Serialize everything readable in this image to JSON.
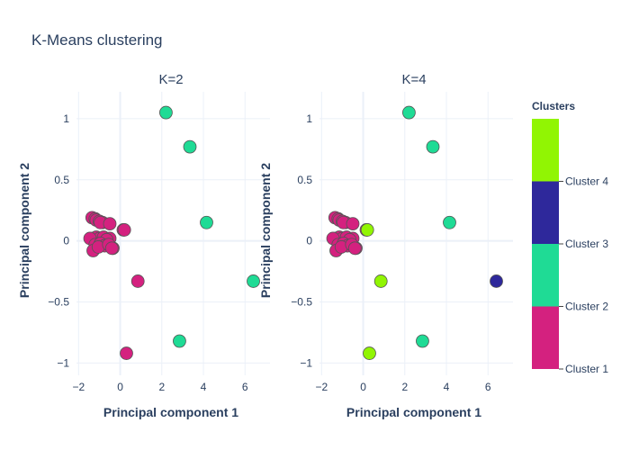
{
  "title": "K-Means clustering",
  "colorbar": {
    "title": "Clusters",
    "entries": [
      {
        "label": "Cluster 1",
        "color": "#d4217f"
      },
      {
        "label": "Cluster 2",
        "color": "#1fdb95"
      },
      {
        "label": "Cluster 3",
        "color": "#2e289b"
      },
      {
        "label": "Cluster 4",
        "color": "#91f503"
      }
    ],
    "ticks": [
      "Cluster 4",
      "Cluster 3",
      "Cluster 2",
      "Cluster 1"
    ]
  },
  "chart_data": [
    {
      "type": "scatter",
      "title": "K=2",
      "xlabel": "Principal component 1",
      "ylabel": "Principal component 2",
      "xlim": [
        -2.1,
        7.2
      ],
      "ylim": [
        -1.1,
        1.22
      ],
      "xticks": [
        "−2",
        "0",
        "2",
        "4",
        "6"
      ],
      "yticks": [
        "1",
        "0.5",
        "0",
        "−0.5",
        "−1"
      ],
      "x": [
        -1.35,
        -1.2,
        -1.15,
        -1.0,
        -0.85,
        -0.95,
        -0.5,
        0.15,
        -1.3,
        -1.15,
        -1.0,
        -0.8,
        -0.5,
        -1.45,
        -0.65,
        -1.2,
        -0.95,
        -0.75,
        -0.35,
        -1.3,
        -1.05,
        -0.55,
        -0.4,
        0.2,
        2.2,
        3.35,
        4.15,
        6.4,
        2.85,
        0.85,
        0.3
      ],
      "y": [
        0.19,
        0.18,
        0.17,
        0.16,
        0.15,
        0.15,
        0.14,
        0.09,
        0.02,
        0.03,
        0.02,
        0.03,
        0.02,
        0.02,
        0.01,
        -0.03,
        -0.02,
        -0.04,
        -0.06,
        -0.08,
        -0.05,
        -0.03,
        -0.06,
        0.09,
        1.05,
        0.77,
        0.15,
        -0.33,
        -0.82,
        -0.33,
        -0.92
      ],
      "cluster": [
        1,
        1,
        1,
        1,
        1,
        1,
        1,
        1,
        1,
        1,
        1,
        1,
        1,
        1,
        1,
        1,
        1,
        1,
        1,
        1,
        1,
        1,
        1,
        1,
        2,
        2,
        2,
        2,
        2,
        1,
        1
      ]
    },
    {
      "type": "scatter",
      "title": "K=4",
      "xlabel": "Principal component 1",
      "ylabel": "Principal component 2",
      "xlim": [
        -2.1,
        7.2
      ],
      "ylim": [
        -1.1,
        1.22
      ],
      "xticks": [
        "−2",
        "0",
        "2",
        "4",
        "6"
      ],
      "yticks": [
        "1",
        "0.5",
        "0",
        "−0.5",
        "−1"
      ],
      "x": [
        -1.35,
        -1.2,
        -1.15,
        -1.0,
        -0.85,
        -0.95,
        -0.5,
        0.15,
        -1.3,
        -1.15,
        -1.0,
        -0.8,
        -0.5,
        -1.45,
        -0.65,
        -1.2,
        -0.95,
        -0.75,
        -0.35,
        -1.3,
        -1.05,
        -0.55,
        -0.4,
        0.2,
        2.2,
        3.35,
        4.15,
        6.4,
        2.85,
        0.85,
        0.3
      ],
      "y": [
        0.19,
        0.18,
        0.17,
        0.16,
        0.15,
        0.15,
        0.14,
        0.09,
        0.02,
        0.03,
        0.02,
        0.03,
        0.02,
        0.02,
        0.01,
        -0.03,
        -0.02,
        -0.04,
        -0.06,
        -0.08,
        -0.05,
        -0.03,
        -0.06,
        0.09,
        1.05,
        0.77,
        0.15,
        -0.33,
        -0.82,
        -0.33,
        -0.92
      ],
      "cluster": [
        1,
        1,
        1,
        1,
        1,
        1,
        1,
        1,
        1,
        1,
        1,
        1,
        1,
        1,
        1,
        1,
        1,
        1,
        1,
        1,
        1,
        1,
        1,
        4,
        2,
        2,
        2,
        3,
        2,
        4,
        4
      ]
    }
  ]
}
